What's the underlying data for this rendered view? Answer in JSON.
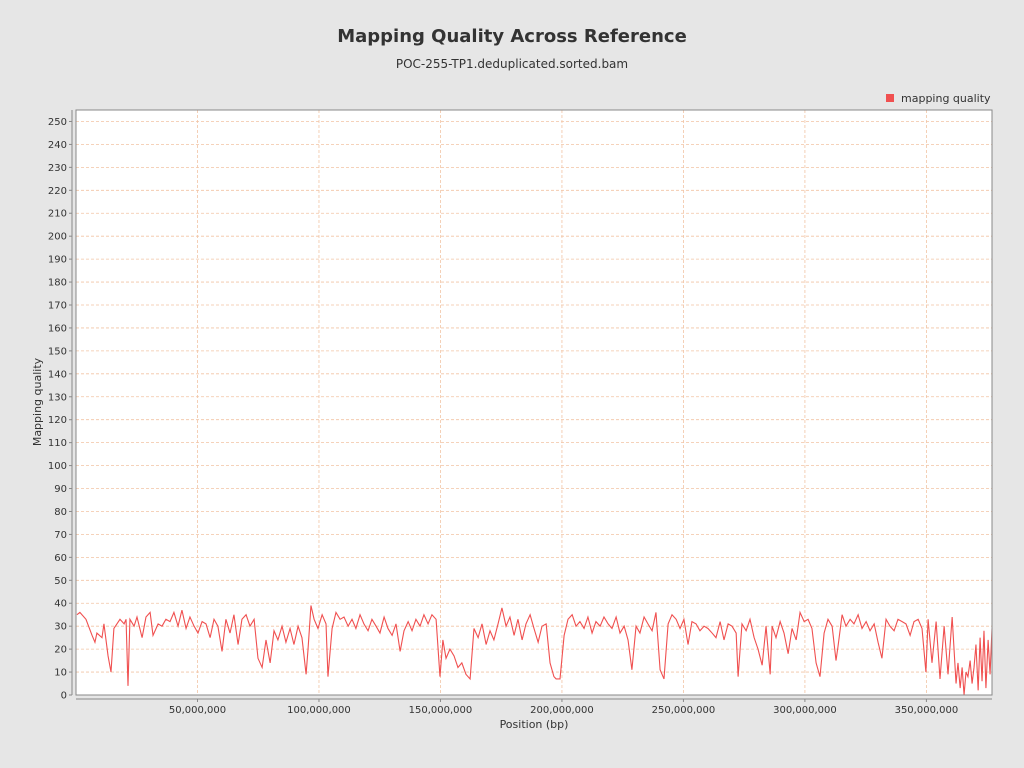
{
  "chart_data": {
    "type": "line",
    "title": "Mapping Quality Across Reference",
    "subtitle": "POC-255-TP1.deduplicated.sorted.bam",
    "x_label": "Position (bp)",
    "y_label": "Mapping quality",
    "legend_position": "top-right",
    "grid": true,
    "xlim": [
      0,
      377000000
    ],
    "ylim": [
      0,
      255
    ],
    "xticks": [
      {
        "value": 50000000,
        "label": "50,000,000"
      },
      {
        "value": 100000000,
        "label": "100,000,000"
      },
      {
        "value": 150000000,
        "label": "150,000,000"
      },
      {
        "value": 200000000,
        "label": "200,000,000"
      },
      {
        "value": 250000000,
        "label": "250,000,000"
      },
      {
        "value": 300000000,
        "label": "300,000,000"
      },
      {
        "value": 350000000,
        "label": "350,000,000"
      }
    ],
    "yticks": [
      0,
      10,
      20,
      30,
      40,
      50,
      60,
      70,
      80,
      90,
      100,
      110,
      120,
      130,
      140,
      150,
      160,
      170,
      180,
      190,
      200,
      210,
      220,
      230,
      240,
      250
    ],
    "x": [
      400000.0,
      1600000.0,
      4100000.0,
      6600000.0,
      7800000.0,
      8600000.0,
      10700000.0,
      11500000.0,
      13200000.0,
      14400000.0,
      15600000.0,
      18100000.0,
      19800000.0,
      20600000.0,
      21400000.0,
      22200000.0,
      23900000.0,
      25100000.0,
      27200000.0,
      28800000.0,
      30500000.0,
      31700000.0,
      33800000.0,
      35400000.0,
      37000000.0,
      38700000.0,
      40300000.0,
      42000000.0,
      43600000.0,
      45300000.0,
      46900000.0,
      48600000.0,
      50200000.0,
      51900000.0,
      53500000.0,
      55200000.0,
      56800000.0,
      58400000.0,
      60100000.0,
      61700000.0,
      63400000.0,
      65000000.0,
      66700000.0,
      68300000.0,
      70000000.0,
      71600000.0,
      73300000.0,
      74900000.0,
      76600000.0,
      78200000.0,
      79900000.0,
      81500000.0,
      83100000.0,
      84800000.0,
      86400000.0,
      88100000.0,
      89700000.0,
      91400000.0,
      93000000.0,
      94700000.0,
      95500000.0,
      96700000.0,
      98000000.0,
      99600000.0,
      101300000.0,
      102900000.0,
      103700000.0,
      105400000.0,
      107000000.0,
      108700000.0,
      110300000.0,
      112000000.0,
      113600000.0,
      115200000.0,
      116900000.0,
      118500000.0,
      120200000.0,
      121800000.0,
      123500000.0,
      125100000.0,
      126800000.0,
      128400000.0,
      130100000.0,
      131700000.0,
      133400000.0,
      135000000.0,
      136700000.0,
      138300000.0,
      139900000.0,
      141600000.0,
      143200000.0,
      144900000.0,
      146500000.0,
      148200000.0,
      149800000.0,
      151000000.0,
      152300000.0,
      153900000.0,
      155600000.0,
      157200000.0,
      158800000.0,
      160500000.0,
      162200000.0,
      163800000.0,
      165500000.0,
      167100000.0,
      168800000.0,
      170400000.0,
      172000000.0,
      173700000.0,
      175300000.0,
      177000000.0,
      178600000.0,
      180300000.0,
      181900000.0,
      183600000.0,
      185200000.0,
      186900000.0,
      188500000.0,
      190200000.0,
      191800000.0,
      193500000.0,
      195100000.0,
      196700000.0,
      197600000.0,
      199200000.0,
      200900000.0,
      202500000.0,
      204200000.0,
      205800000.0,
      207400000.0,
      209100000.0,
      210700000.0,
      212400000.0,
      214000000.0,
      215700000.0,
      217300000.0,
      219000000.0,
      220600000.0,
      222300000.0,
      223900000.0,
      225600000.0,
      227200000.0,
      228800000.0,
      230500000.0,
      232100000.0,
      233800000.0,
      235400000.0,
      237100000.0,
      238700000.0,
      240400000.0,
      242000000.0,
      243700000.0,
      245300000.0,
      247000000.0,
      248600000.0,
      250200000.0,
      251900000.0,
      253500000.0,
      255200000.0,
      256800000.0,
      258500000.0,
      260100000.0,
      261800000.0,
      263400000.0,
      265100000.0,
      266700000.0,
      268400000.0,
      270000000.0,
      271700000.0,
      272500000.0,
      274100000.0,
      275800000.0,
      277400000.0,
      279100000.0,
      280700000.0,
      282400000.0,
      284000000.0,
      285700000.0,
      286500000.0,
      288100000.0,
      289800000.0,
      291400000.0,
      293100000.0,
      294700000.0,
      296400000.0,
      298000000.0,
      299700000.0,
      301300000.0,
      302900000.0,
      304600000.0,
      306200000.0,
      307900000.0,
      309500000.0,
      311200000.0,
      312800000.0,
      313600000.0,
      315300000.0,
      316900000.0,
      318600000.0,
      320200000.0,
      321900000.0,
      323500000.0,
      325200000.0,
      326800000.0,
      328500000.0,
      330100000.0,
      331700000.0,
      333400000.0,
      335000000.0,
      336700000.0,
      338300000.0,
      340000000.0,
      341600000.0,
      343300000.0,
      344900000.0,
      346600000.0,
      348200000.0,
      349800000.0,
      350700000.0,
      352300000.0,
      354000000.0,
      355600000.0,
      357300000.0,
      358900000.0,
      360600000.0,
      362200000.0,
      363000000.0,
      363900000.0,
      364700000.0,
      365500000.0,
      366300000.0,
      367100000.0,
      368000000.0,
      368800000.0,
      369600000.0,
      370400000.0,
      371300000.0,
      372100000.0,
      372900000.0,
      373700000.0,
      374500000.0,
      375400000.0,
      376200000.0,
      377000000.0
    ],
    "series": [
      {
        "name": "mapping quality",
        "color": "#f05050",
        "values": [
          35,
          36,
          33,
          26,
          23,
          27,
          25,
          31,
          17,
          10,
          29,
          33,
          31,
          33,
          4,
          33,
          30,
          34,
          25,
          34,
          36,
          26,
          31,
          30,
          33,
          32,
          36,
          30,
          37,
          29,
          34,
          30,
          27,
          32,
          31,
          25,
          33,
          30,
          19,
          33,
          27,
          35,
          22,
          33,
          35,
          30,
          33,
          16,
          12,
          24,
          14,
          28,
          24,
          30,
          23,
          29,
          22,
          30,
          25,
          9,
          20,
          39,
          33,
          29,
          35,
          31,
          8,
          29,
          36,
          33,
          34,
          30,
          33,
          29,
          35,
          31,
          28,
          33,
          30,
          27,
          34,
          29,
          26,
          31,
          19,
          28,
          32,
          28,
          33,
          30,
          35,
          31,
          35,
          33,
          8,
          24,
          16,
          20,
          17,
          12,
          14,
          9,
          7,
          29,
          25,
          31,
          22,
          28,
          24,
          31,
          38,
          30,
          34,
          26,
          33,
          24,
          31,
          35,
          29,
          23,
          30,
          31,
          14,
          8,
          7,
          7,
          26,
          33,
          35,
          30,
          32,
          29,
          34,
          27,
          32,
          30,
          34,
          31,
          29,
          34,
          27,
          30,
          24,
          11,
          30,
          27,
          34,
          31,
          28,
          36,
          11,
          7,
          31,
          35,
          33,
          29,
          33,
          22,
          32,
          31,
          28,
          30,
          29,
          27,
          25,
          32,
          24,
          31,
          30,
          27,
          8,
          31,
          28,
          33,
          25,
          20,
          13,
          30,
          9,
          30,
          25,
          32,
          27,
          18,
          29,
          24,
          36,
          32,
          33,
          29,
          14,
          8,
          27,
          33,
          30,
          15,
          21,
          35,
          30,
          33,
          31,
          35,
          29,
          32,
          28,
          31,
          23,
          16,
          33,
          30,
          28,
          33,
          32,
          31,
          26,
          32,
          33,
          29,
          10,
          33,
          14,
          32,
          7,
          30,
          9,
          34,
          5,
          14,
          3,
          12,
          0,
          10,
          8,
          15,
          5,
          12,
          22,
          2,
          25,
          6,
          28,
          3,
          24,
          9,
          29
        ]
      }
    ]
  }
}
